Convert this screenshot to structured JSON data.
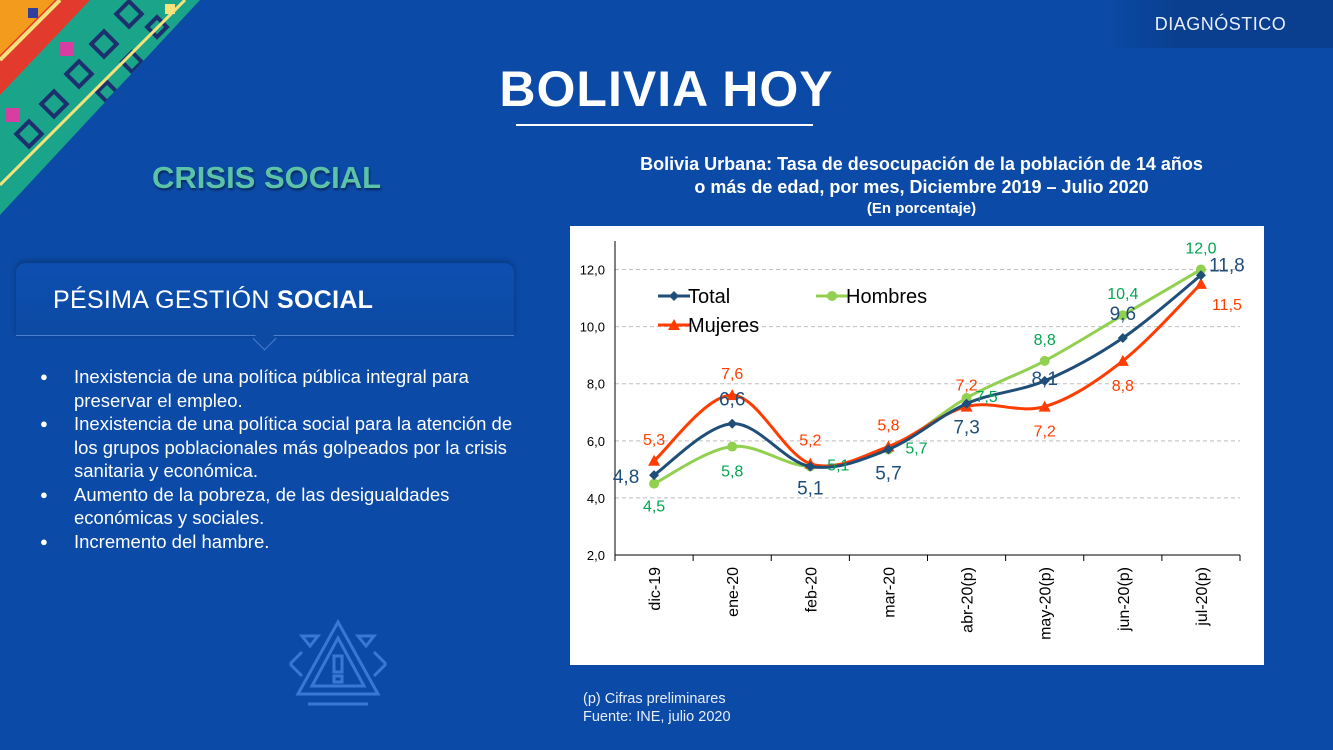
{
  "header": {
    "tag": "DIAGNÓSTICO",
    "title": "BOLIVIA HOY"
  },
  "section": {
    "title": "CRISIS SOCIAL"
  },
  "panel": {
    "heading_normal": "PÉSIMA GESTIÓN ",
    "heading_bold": "SOCIAL",
    "bullets": [
      "Inexistencia de una política pública integral para preservar el empleo.",
      "Inexistencia de una política social para la atención de los grupos poblacionales más golpeados por la crisis sanitaria y económica.",
      "Aumento de la pobreza, de las desigualdades económicas y sociales.",
      "Incremento del hambre."
    ]
  },
  "chart": {
    "title_line1": "Bolivia Urbana: Tasa de desocupación de la población de 14 años",
    "title_line2": "o más de edad, por mes, Diciembre 2019 – Julio 2020",
    "subtitle": "(En porcentaje)"
  },
  "footnotes": {
    "line1": "(p) Cifras preliminares",
    "line2": "Fuente: INE,  julio 2020"
  },
  "colors": {
    "background": "#0b4aa6",
    "total": "#1f4e79",
    "hombres": "#92d050",
    "mujeres": "#ff3d00",
    "hombres_label": "#00a651",
    "mujeres_label": "#ff3d00",
    "section_title": "#5cc3a8"
  },
  "icons": [
    "corner-pattern-icon",
    "emblem-icon"
  ],
  "chart_data": {
    "type": "line",
    "categories": [
      "dic-19",
      "ene-20",
      "feb-20",
      "mar-20",
      "abr-20(p)",
      "may-20(p)",
      "jun-20(p)",
      "jul-20(p)"
    ],
    "ylim": [
      2.0,
      13.0
    ],
    "yticks": [
      "2,0",
      "4,0",
      "6,0",
      "8,0",
      "10,0",
      "12,0"
    ],
    "grid": true,
    "legend_position": "top-left",
    "series": [
      {
        "name": "Total",
        "values": [
          4.8,
          6.6,
          5.1,
          5.7,
          7.3,
          8.1,
          9.6,
          11.8
        ],
        "labels": [
          "4,8",
          "6,6",
          "5,1",
          "5,7",
          "7,3",
          "8,1",
          "9,6",
          "11,8"
        ]
      },
      {
        "name": "Hombres",
        "values": [
          4.5,
          5.8,
          5.1,
          5.7,
          7.5,
          8.8,
          10.4,
          12.0
        ],
        "labels": [
          "4,5",
          "5,8",
          "5,1",
          "5,7",
          "7,5",
          "8,8",
          "10,4",
          "12,0"
        ]
      },
      {
        "name": "Mujeres",
        "values": [
          5.3,
          7.6,
          5.2,
          5.8,
          7.2,
          7.2,
          8.8,
          11.5
        ],
        "labels": [
          "5,3",
          "7,6",
          "5,2",
          "5,8",
          "7,2",
          "7,2",
          "8,8",
          "11,5"
        ]
      }
    ]
  }
}
